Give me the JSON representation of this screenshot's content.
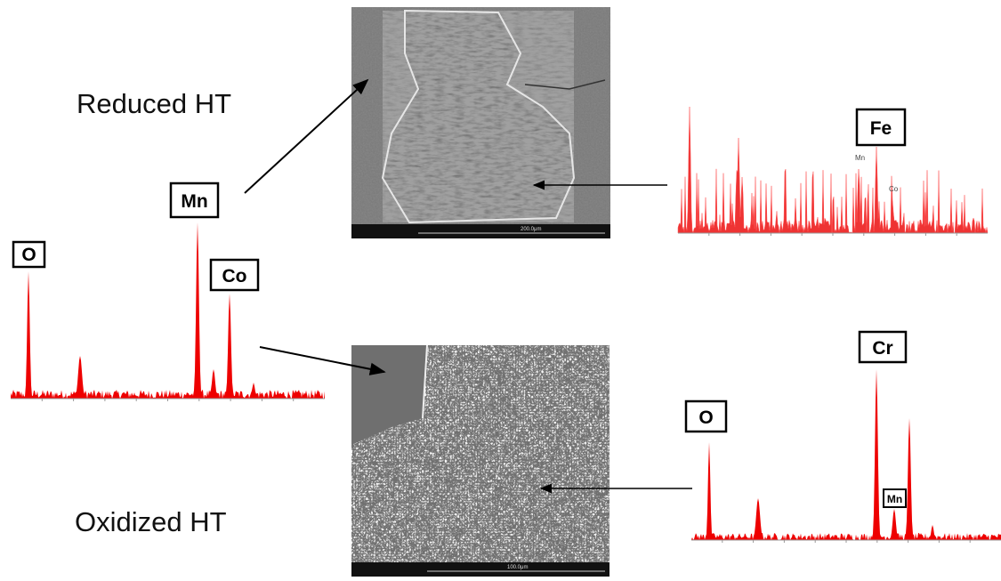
{
  "labels": {
    "reduced": "Reduced HT",
    "oxidized": "Oxidized HT"
  },
  "left_spectrum": {
    "peaks": [
      "O",
      "Mn",
      "Co"
    ]
  },
  "top_right_spectrum": {
    "peaks": [
      "Fe"
    ],
    "minor_labels": [
      "Mn",
      "Co"
    ]
  },
  "bottom_right_spectrum": {
    "peaks": [
      "O",
      "Cr",
      "Mn"
    ]
  },
  "sem_images": [
    {
      "scale": "200.0μm"
    },
    {
      "scale": "100.0μm"
    }
  ]
}
